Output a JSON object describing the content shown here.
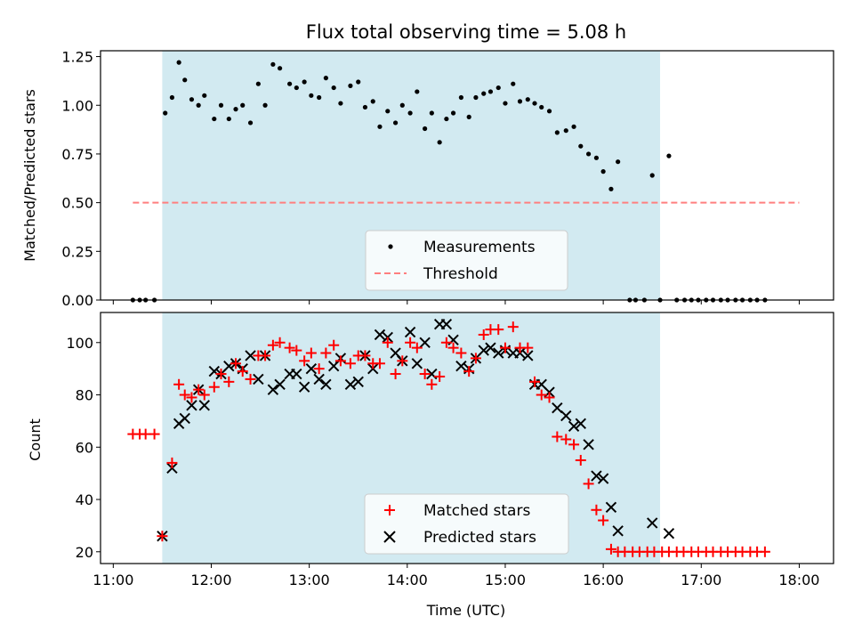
{
  "chart_data": [
    {
      "type": "scatter",
      "title": "Flux total observing time = 5.08 h",
      "xlabel": "",
      "ylabel": "Matched/Predicted stars",
      "ylim": [
        0,
        1.28
      ],
      "yticks": [
        "0.00",
        "0.25",
        "0.50",
        "0.75",
        "1.00",
        "1.25"
      ],
      "ytick_values": [
        0,
        0.25,
        0.5,
        0.75,
        1.0,
        1.25
      ],
      "shaded_span": {
        "x": [
          11.5,
          16.58
        ],
        "color": "#add8e6"
      },
      "threshold": {
        "name": "Threshold",
        "y": 0.5,
        "x": [
          11.2,
          18.0
        ],
        "color": "#ff7f7f"
      },
      "series": [
        {
          "name": "Measurements",
          "color": "#000000",
          "points": [
            [
              11.2,
              0
            ],
            [
              11.27,
              0
            ],
            [
              11.33,
              0
            ],
            [
              11.42,
              0
            ],
            [
              11.53,
              0.96
            ],
            [
              11.6,
              1.04
            ],
            [
              11.67,
              1.22
            ],
            [
              11.73,
              1.13
            ],
            [
              11.8,
              1.03
            ],
            [
              11.87,
              1.0
            ],
            [
              11.93,
              1.05
            ],
            [
              12.03,
              0.93
            ],
            [
              12.1,
              1.0
            ],
            [
              12.18,
              0.93
            ],
            [
              12.25,
              0.98
            ],
            [
              12.32,
              1.0
            ],
            [
              12.4,
              0.91
            ],
            [
              12.48,
              1.11
            ],
            [
              12.55,
              1.0
            ],
            [
              12.63,
              1.21
            ],
            [
              12.7,
              1.19
            ],
            [
              12.8,
              1.11
            ],
            [
              12.87,
              1.09
            ],
            [
              12.95,
              1.12
            ],
            [
              13.02,
              1.05
            ],
            [
              13.1,
              1.04
            ],
            [
              13.17,
              1.14
            ],
            [
              13.25,
              1.09
            ],
            [
              13.32,
              1.01
            ],
            [
              13.42,
              1.1
            ],
            [
              13.5,
              1.12
            ],
            [
              13.57,
              0.99
            ],
            [
              13.65,
              1.02
            ],
            [
              13.72,
              0.89
            ],
            [
              13.8,
              0.97
            ],
            [
              13.88,
              0.91
            ],
            [
              13.95,
              1.0
            ],
            [
              14.03,
              0.96
            ],
            [
              14.1,
              1.07
            ],
            [
              14.18,
              0.88
            ],
            [
              14.25,
              0.96
            ],
            [
              14.33,
              0.81
            ],
            [
              14.4,
              0.93
            ],
            [
              14.47,
              0.96
            ],
            [
              14.55,
              1.04
            ],
            [
              14.63,
              0.94
            ],
            [
              14.7,
              1.04
            ],
            [
              14.78,
              1.06
            ],
            [
              14.85,
              1.07
            ],
            [
              14.93,
              1.09
            ],
            [
              15.0,
              1.01
            ],
            [
              15.08,
              1.11
            ],
            [
              15.15,
              1.02
            ],
            [
              15.23,
              1.03
            ],
            [
              15.3,
              1.01
            ],
            [
              15.37,
              0.99
            ],
            [
              15.45,
              0.97
            ],
            [
              15.53,
              0.86
            ],
            [
              15.62,
              0.87
            ],
            [
              15.7,
              0.89
            ],
            [
              15.77,
              0.79
            ],
            [
              15.85,
              0.75
            ],
            [
              15.93,
              0.73
            ],
            [
              16.0,
              0.66
            ],
            [
              16.08,
              0.57
            ],
            [
              16.15,
              0.71
            ],
            [
              16.27,
              0
            ],
            [
              16.33,
              0
            ],
            [
              16.42,
              0
            ],
            [
              16.5,
              0.64
            ],
            [
              16.58,
              0
            ],
            [
              16.67,
              0.74
            ],
            [
              16.75,
              0
            ],
            [
              16.83,
              0
            ],
            [
              16.9,
              0
            ],
            [
              16.97,
              0
            ],
            [
              17.05,
              0
            ],
            [
              17.12,
              0
            ],
            [
              17.2,
              0
            ],
            [
              17.27,
              0
            ],
            [
              17.35,
              0
            ],
            [
              17.42,
              0
            ],
            [
              17.5,
              0
            ],
            [
              17.57,
              0
            ],
            [
              17.65,
              0
            ]
          ]
        }
      ],
      "legend": {
        "placement": "lower center",
        "entries": [
          "Measurements",
          "Threshold"
        ]
      }
    },
    {
      "type": "scatter",
      "title": "",
      "xlabel": "Time (UTC)",
      "ylabel": "Count",
      "ylim": [
        15.5,
        111.5
      ],
      "yticks": [
        "20",
        "40",
        "60",
        "80",
        "100"
      ],
      "ytick_values": [
        20,
        40,
        60,
        80,
        100
      ],
      "xlim": [
        10.87,
        18.35
      ],
      "xticks": [
        "11:00",
        "12:00",
        "13:00",
        "14:00",
        "15:00",
        "16:00",
        "17:00",
        "18:00"
      ],
      "xtick_values": [
        11,
        12,
        13,
        14,
        15,
        16,
        17,
        18
      ],
      "shaded_span": {
        "x": [
          11.5,
          16.58
        ],
        "color": "#add8e6"
      },
      "series": [
        {
          "name": "Matched stars",
          "marker": "plus",
          "color": "#ff0000",
          "points": [
            [
              11.2,
              65
            ],
            [
              11.27,
              65
            ],
            [
              11.33,
              65
            ],
            [
              11.42,
              65
            ],
            [
              11.5,
              26
            ],
            [
              11.6,
              54
            ],
            [
              11.67,
              84
            ],
            [
              11.73,
              80
            ],
            [
              11.8,
              79
            ],
            [
              11.87,
              82
            ],
            [
              11.93,
              80
            ],
            [
              12.03,
              83
            ],
            [
              12.1,
              88
            ],
            [
              12.18,
              85
            ],
            [
              12.25,
              92
            ],
            [
              12.32,
              89
            ],
            [
              12.4,
              86
            ],
            [
              12.48,
              95
            ],
            [
              12.55,
              95
            ],
            [
              12.63,
              99
            ],
            [
              12.7,
              100
            ],
            [
              12.8,
              98
            ],
            [
              12.87,
              97
            ],
            [
              12.95,
              93
            ],
            [
              13.02,
              96
            ],
            [
              13.1,
              90
            ],
            [
              13.17,
              96
            ],
            [
              13.25,
              99
            ],
            [
              13.32,
              93
            ],
            [
              13.42,
              92
            ],
            [
              13.5,
              95
            ],
            [
              13.57,
              95
            ],
            [
              13.65,
              92
            ],
            [
              13.72,
              92
            ],
            [
              13.8,
              100
            ],
            [
              13.88,
              88
            ],
            [
              13.95,
              93
            ],
            [
              14.03,
              100
            ],
            [
              14.1,
              98
            ],
            [
              14.18,
              88
            ],
            [
              14.25,
              84
            ],
            [
              14.33,
              87
            ],
            [
              14.4,
              100
            ],
            [
              14.47,
              98
            ],
            [
              14.55,
              96
            ],
            [
              14.63,
              89
            ],
            [
              14.7,
              94
            ],
            [
              14.78,
              103
            ],
            [
              14.85,
              105
            ],
            [
              14.93,
              105
            ],
            [
              15.0,
              98
            ],
            [
              15.08,
              106
            ],
            [
              15.15,
              98
            ],
            [
              15.23,
              98
            ],
            [
              15.3,
              85
            ],
            [
              15.37,
              80
            ],
            [
              15.45,
              79
            ],
            [
              15.53,
              64
            ],
            [
              15.62,
              63
            ],
            [
              15.7,
              61
            ],
            [
              15.77,
              55
            ],
            [
              15.85,
              46
            ],
            [
              15.93,
              36
            ],
            [
              16.0,
              32
            ],
            [
              16.08,
              21
            ],
            [
              16.15,
              20
            ],
            [
              16.22,
              20
            ],
            [
              16.3,
              20
            ],
            [
              16.37,
              20
            ],
            [
              16.45,
              20
            ],
            [
              16.52,
              20
            ],
            [
              16.6,
              20
            ],
            [
              16.67,
              20
            ],
            [
              16.75,
              20
            ],
            [
              16.82,
              20
            ],
            [
              16.9,
              20
            ],
            [
              16.97,
              20
            ],
            [
              17.05,
              20
            ],
            [
              17.12,
              20
            ],
            [
              17.2,
              20
            ],
            [
              17.27,
              20
            ],
            [
              17.35,
              20
            ],
            [
              17.42,
              20
            ],
            [
              17.5,
              20
            ],
            [
              17.57,
              20
            ],
            [
              17.65,
              20
            ]
          ]
        },
        {
          "name": "Predicted stars",
          "marker": "x",
          "color": "#000000",
          "points": [
            [
              11.5,
              26
            ],
            [
              11.6,
              52
            ],
            [
              11.67,
              69
            ],
            [
              11.73,
              71
            ],
            [
              11.8,
              76
            ],
            [
              11.87,
              82
            ],
            [
              11.93,
              76
            ],
            [
              12.03,
              89
            ],
            [
              12.1,
              88
            ],
            [
              12.18,
              91
            ],
            [
              12.25,
              92
            ],
            [
              12.32,
              90
            ],
            [
              12.4,
              95
            ],
            [
              12.48,
              86
            ],
            [
              12.55,
              95
            ],
            [
              12.63,
              82
            ],
            [
              12.7,
              84
            ],
            [
              12.8,
              88
            ],
            [
              12.87,
              88
            ],
            [
              12.95,
              83
            ],
            [
              13.02,
              90
            ],
            [
              13.1,
              86
            ],
            [
              13.17,
              84
            ],
            [
              13.25,
              91
            ],
            [
              13.32,
              94
            ],
            [
              13.42,
              84
            ],
            [
              13.5,
              85
            ],
            [
              13.57,
              95
            ],
            [
              13.65,
              90
            ],
            [
              13.72,
              103
            ],
            [
              13.8,
              102
            ],
            [
              13.88,
              96
            ],
            [
              13.95,
              93
            ],
            [
              14.03,
              104
            ],
            [
              14.1,
              92
            ],
            [
              14.18,
              100
            ],
            [
              14.25,
              88
            ],
            [
              14.33,
              107
            ],
            [
              14.4,
              107
            ],
            [
              14.47,
              101
            ],
            [
              14.55,
              91
            ],
            [
              14.63,
              90
            ],
            [
              14.7,
              94
            ],
            [
              14.78,
              97
            ],
            [
              14.85,
              98
            ],
            [
              14.93,
              96
            ],
            [
              15.0,
              97
            ],
            [
              15.08,
              96
            ],
            [
              15.15,
              96
            ],
            [
              15.23,
              95
            ],
            [
              15.3,
              84
            ],
            [
              15.37,
              84
            ],
            [
              15.45,
              81
            ],
            [
              15.53,
              75
            ],
            [
              15.62,
              72
            ],
            [
              15.7,
              68
            ],
            [
              15.77,
              69
            ],
            [
              15.85,
              61
            ],
            [
              15.93,
              49
            ],
            [
              16.0,
              48
            ],
            [
              16.08,
              37
            ],
            [
              16.15,
              28
            ],
            [
              16.5,
              31
            ],
            [
              16.67,
              27
            ]
          ]
        }
      ],
      "legend": {
        "placement": "lower center",
        "entries": [
          "Matched stars",
          "Predicted stars"
        ]
      }
    }
  ]
}
